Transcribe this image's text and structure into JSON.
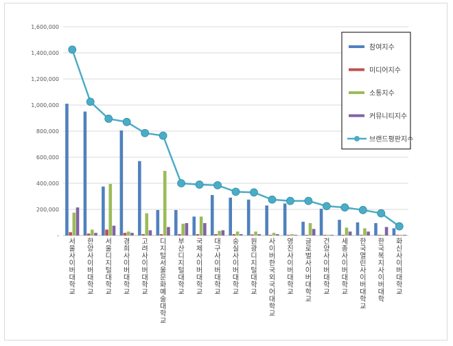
{
  "chart_data": {
    "type": "bar",
    "title": "",
    "xlabel": "",
    "ylabel": "",
    "ylim": [
      0,
      1600000
    ],
    "yticks": [
      0,
      200000,
      400000,
      600000,
      800000,
      1000000,
      1200000,
      1400000,
      1600000
    ],
    "ytick_labels": [
      "-",
      "200,000",
      "400,000",
      "600,000",
      "800,000",
      "1,000,000",
      "1,200,000",
      "1,400,000",
      "1,600,000"
    ],
    "grid": true,
    "legend_position": "top-right",
    "categories": [
      "서울사이버대학교",
      "한양사이버대학교",
      "서울디지털대학교",
      "경희사이버대학교",
      "고려사이버대학교",
      "디지털서울문화예술대학교",
      "부산디지털대학교",
      "국제사이버대학교",
      "대구사이버대학교",
      "숭실사이버대학교",
      "원광디지털대학교",
      "사이버한국외국어대학교",
      "영진사이버대학교",
      "글로벌사이버대학교",
      "건양사이버대학교",
      "세종사이버대학교",
      "한국열린사이버대학교",
      "한국복지사이버대학",
      "화신사이버대학교"
    ],
    "series": [
      {
        "name": "참여지수",
        "kind": "bar",
        "color": "#4f81bd",
        "values": [
          1010000,
          950000,
          375000,
          805000,
          570000,
          195000,
          195000,
          145000,
          310000,
          290000,
          275000,
          230000,
          245000,
          105000,
          205000,
          120000,
          100000,
          95000,
          55000
        ]
      },
      {
        "name": "미디어지수",
        "kind": "bar",
        "color": "#c0504d",
        "values": [
          25000,
          15000,
          45000,
          20000,
          10000,
          10000,
          10000,
          10000,
          10000,
          10000,
          8000,
          5000,
          5000,
          5000,
          5000,
          5000,
          5000,
          5000,
          5000
        ]
      },
      {
        "name": "소통지수",
        "kind": "bar",
        "color": "#9bbb59",
        "values": [
          175000,
          45000,
          395000,
          30000,
          170000,
          495000,
          90000,
          145000,
          35000,
          30000,
          30000,
          20000,
          10000,
          95000,
          5000,
          60000,
          55000,
          5000,
          5000
        ]
      },
      {
        "name": "커뮤니티지수",
        "kind": "bar",
        "color": "#8064a2",
        "values": [
          215000,
          20000,
          75000,
          20000,
          40000,
          65000,
          95000,
          95000,
          40000,
          10000,
          10000,
          10000,
          5000,
          50000,
          5000,
          30000,
          30000,
          65000,
          5000
        ]
      },
      {
        "name": "브랜드평판지수",
        "kind": "line",
        "color": "#4bacc6",
        "values": [
          1425000,
          1025000,
          895000,
          870000,
          785000,
          765000,
          400000,
          390000,
          385000,
          335000,
          330000,
          275000,
          265000,
          265000,
          225000,
          215000,
          195000,
          170000,
          70000
        ]
      }
    ]
  }
}
